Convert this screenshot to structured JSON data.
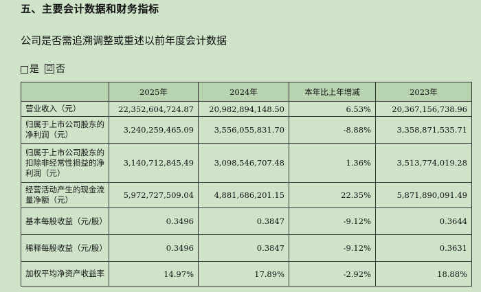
{
  "section_title": "五、主要会计数据和财务指标",
  "question": "公司是否需追溯调整或重述以前年度会计数据",
  "choices": {
    "yes_label": "是",
    "no_label": "否",
    "checked_mark": "☑"
  },
  "table": {
    "headers": [
      "",
      "2025年",
      "2024年",
      "本年比上年增减",
      "2023年"
    ],
    "rows": [
      {
        "label": "营业收入（元）",
        "v2025": "22,352,604,724.87",
        "v2024": "20,982,894,148.50",
        "change": "6.53%",
        "v2023": "20,367,156,738.96"
      },
      {
        "label": "归属于上市公司股东的净利润（元）",
        "v2025": "3,240,259,465.09",
        "v2024": "3,556,055,831.70",
        "change": "-8.88%",
        "v2023": "3,358,871,535.71"
      },
      {
        "label": "归属于上市公司股东的扣除非经常性损益的净利润（元）",
        "v2025": "3,140,712,845.49",
        "v2024": "3,098,546,707.48",
        "change": "1.36%",
        "v2023": "3,513,774,019.28"
      },
      {
        "label": "经营活动产生的现金流量净额（元）",
        "v2025": "5,972,727,509.04",
        "v2024": "4,881,686,201.15",
        "change": "22.35%",
        "v2023": "5,871,890,091.49"
      },
      {
        "label": "基本每股收益（元/股）",
        "v2025": "0.3496",
        "v2024": "0.3847",
        "change": "-9.12%",
        "v2023": "0.3644"
      },
      {
        "label": "稀释每股收益（元/股）",
        "v2025": "0.3496",
        "v2024": "0.3847",
        "change": "-9.12%",
        "v2023": "0.3631"
      },
      {
        "label": "加权平均净资产收益率",
        "v2025": "14.97%",
        "v2024": "17.89%",
        "change": "-2.92%",
        "v2023": "18.88%"
      }
    ]
  }
}
